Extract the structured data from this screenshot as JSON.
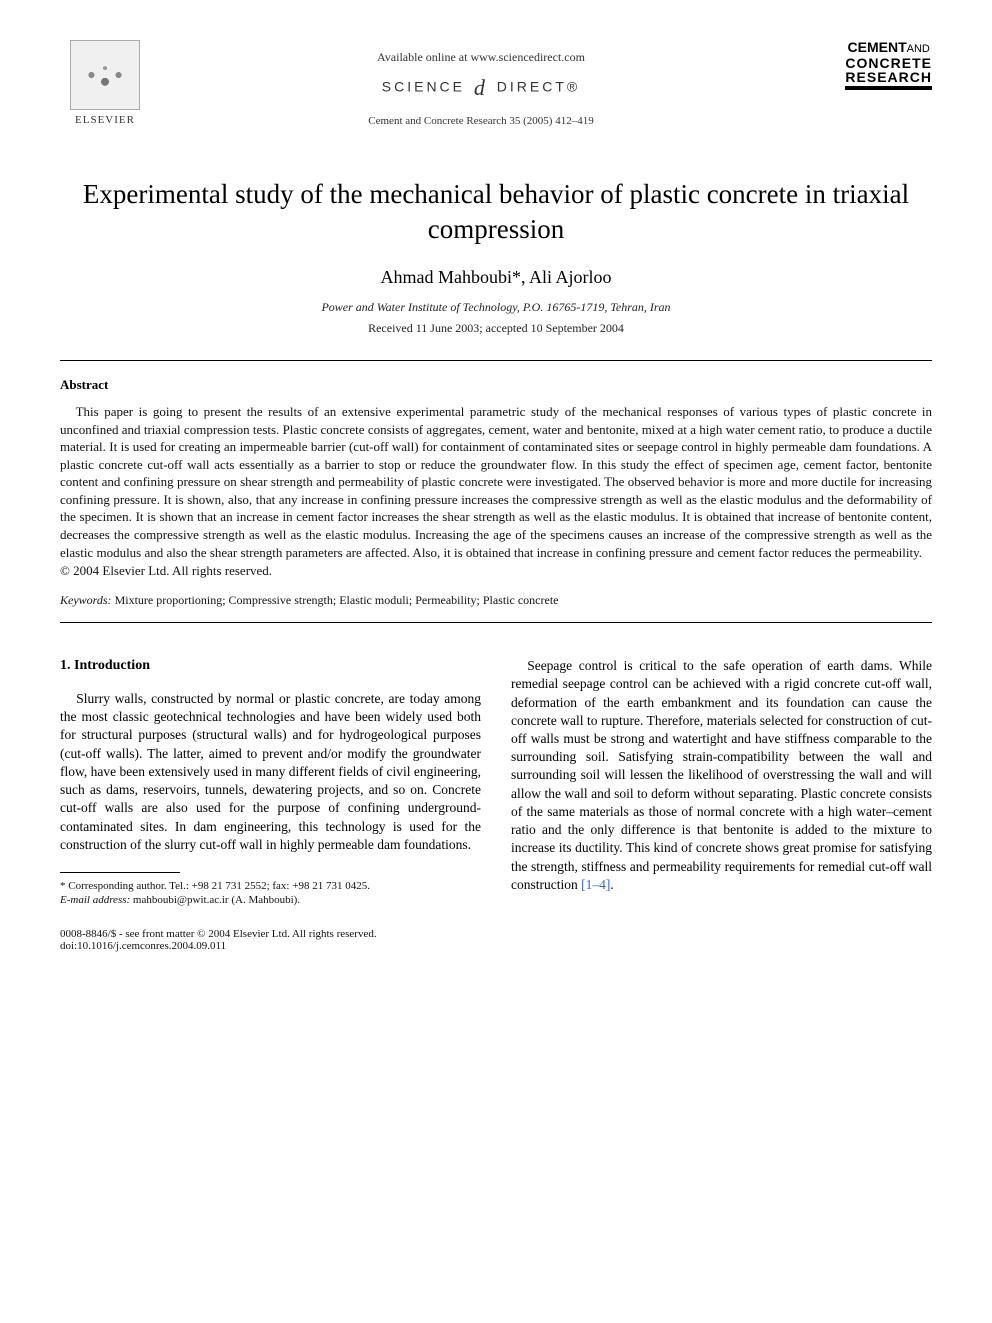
{
  "header": {
    "publisher": "ELSEVIER",
    "available_online": "Available online at www.sciencedirect.com",
    "science_direct_prefix": "SCIENCE",
    "science_direct_suffix": "DIRECT®",
    "journal_ref": "Cement and Concrete Research 35 (2005) 412–419",
    "journal_logo_l1a": "CEMENT",
    "journal_logo_l1b": "AND",
    "journal_logo_l2": "CONCRETE",
    "journal_logo_l3": "RESEARCH"
  },
  "title": "Experimental study of the mechanical behavior of plastic concrete in triaxial compression",
  "authors": "Ahmad Mahboubi*, Ali Ajorloo",
  "affiliation": "Power and Water Institute of Technology, P.O. 16765-1719, Tehran, Iran",
  "dates": "Received 11 June 2003; accepted 10 September 2004",
  "abstract": {
    "heading": "Abstract",
    "body": "This paper is going to present the results of an extensive experimental parametric study of the mechanical responses of various types of plastic concrete in unconfined and triaxial compression tests. Plastic concrete consists of aggregates, cement, water and bentonite, mixed at a high water cement ratio, to produce a ductile material. It is used for creating an impermeable barrier (cut-off wall) for containment of contaminated sites or seepage control in highly permeable dam foundations. A plastic concrete cut-off wall acts essentially as a barrier to stop or reduce the groundwater flow. In this study the effect of specimen age, cement factor, bentonite content and confining pressure on shear strength and permeability of plastic concrete were investigated. The observed behavior is more and more ductile for increasing confining pressure. It is shown, also, that any increase in confining pressure increases the compressive strength as well as the elastic modulus and the deformability of the specimen. It is shown that an increase in cement factor increases the shear strength as well as the elastic modulus. It is obtained that increase of bentonite content, decreases the compressive strength as well as the elastic modulus. Increasing the age of the specimens causes an increase of the compressive strength as well as the elastic modulus and also the shear strength parameters are affected. Also, it is obtained that increase in confining pressure and cement factor reduces the permeability.",
    "copyright": "© 2004 Elsevier Ltd. All rights reserved."
  },
  "keywords": {
    "label": "Keywords:",
    "text": "Mixture proportioning; Compressive strength; Elastic moduli; Permeability; Plastic concrete"
  },
  "intro": {
    "heading": "1. Introduction",
    "para1": "Slurry walls, constructed by normal or plastic concrete, are today among the most classic geotechnical technologies and have been widely used both for structural purposes (structural walls) and for hydrogeological purposes (cut-off walls). The latter, aimed to prevent and/or modify the groundwater flow, have been extensively used in many different fields of civil engineering, such as dams, reservoirs, tunnels, dewatering projects, and so on. Concrete cut-off walls are also used for the purpose of confining underground-contaminated sites. In dam engineering, this technology is used for the construction of the slurry cut-off wall in highly permeable dam foundations.",
    "para2_pre": "Seepage control is critical to the safe operation of earth dams. While remedial seepage control can be achieved with a rigid concrete cut-off wall, deformation of the earth embankment and its foundation can cause the concrete wall to rupture. Therefore, materials selected for construction of cut-off walls must be strong and watertight and have stiffness comparable to the surrounding soil. Satisfying strain-compatibility between the wall and surrounding soil will lessen the likelihood of overstressing the wall and will allow the wall and soil to deform without separating. Plastic concrete consists of the same materials as those of normal concrete with a high water–cement ratio and the only difference is that bentonite is added to the mixture to increase its ductility. This kind of concrete shows great promise for satisfying the strength, stiffness and permeability requirements for remedial cut-off wall construction ",
    "ref": "[1–4]",
    "para2_post": "."
  },
  "footnote": {
    "corresponding": "* Corresponding author. Tel.: +98 21 731 2552; fax: +98 21 731 0425.",
    "email_label": "E-mail address:",
    "email_value": "mahboubi@pwit.ac.ir (A. Mahboubi)."
  },
  "footer": {
    "line1": "0008-8846/$ - see front matter © 2004 Elsevier Ltd. All rights reserved.",
    "line2": "doi:10.1016/j.cemconres.2004.09.011"
  },
  "colors": {
    "text": "#000000",
    "link": "#3366cc",
    "background": "#ffffff"
  }
}
